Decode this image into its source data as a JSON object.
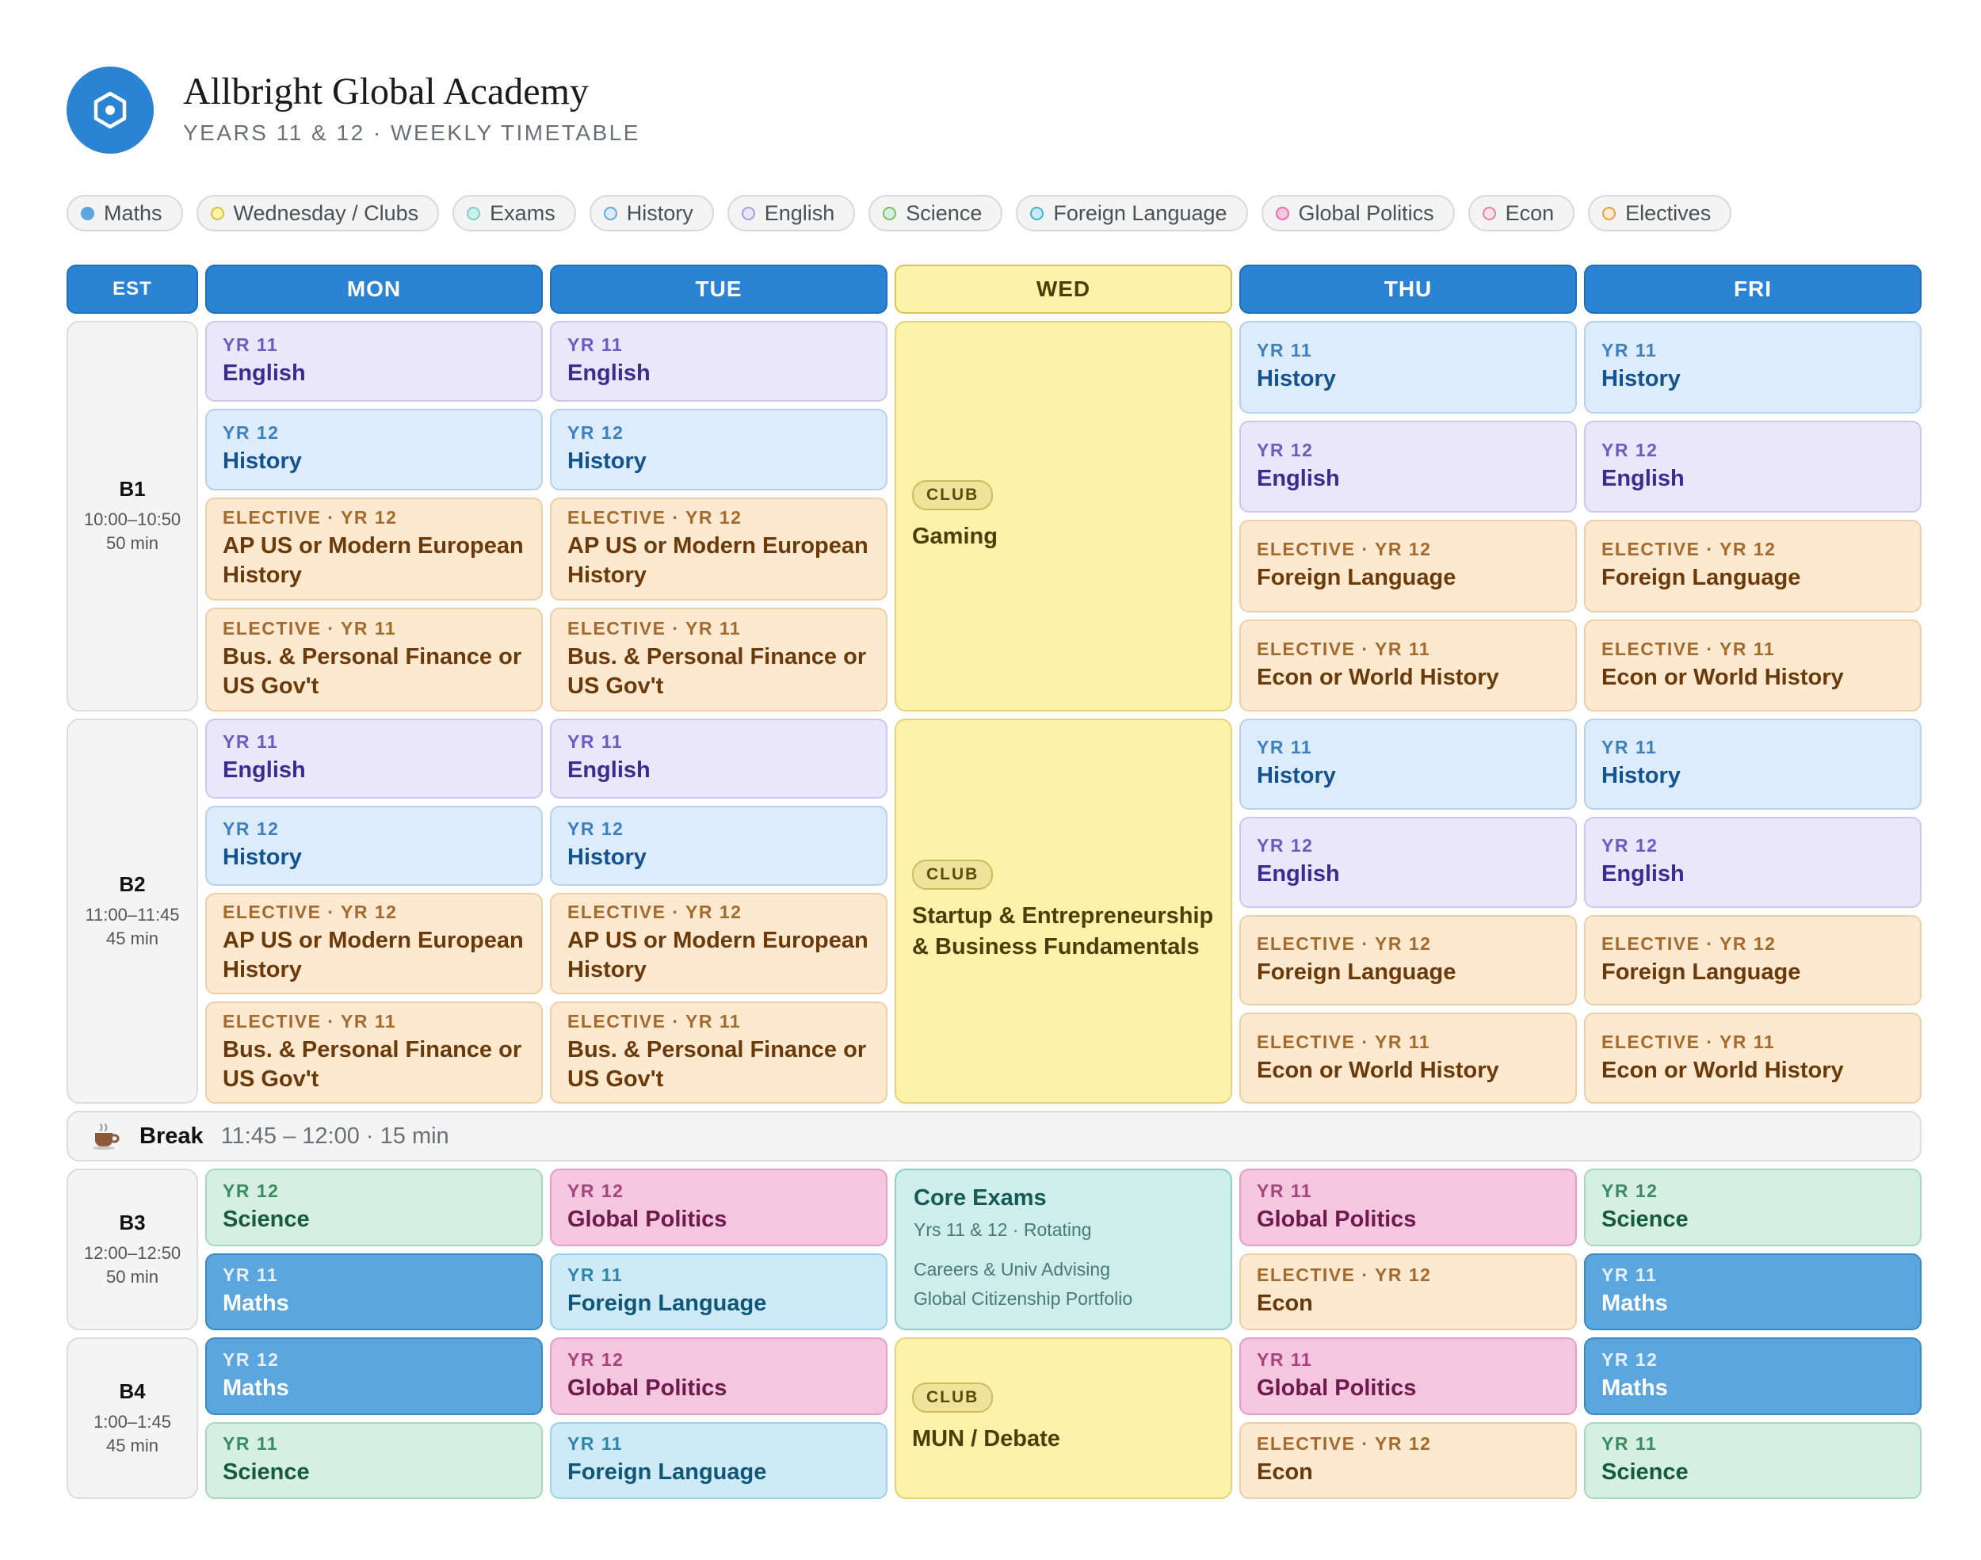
{
  "header": {
    "title": "Allbright Global Academy",
    "subtitle": "YEARS 11 & 12 · WEEKLY TIMETABLE",
    "logo_icon": "hexagon-logo-icon",
    "accent": "#2b84d3"
  },
  "legend": [
    {
      "label": "Maths",
      "color": "#5ba6de",
      "filled": true
    },
    {
      "label": "Wednesday / Clubs",
      "color": "#d9c13a",
      "filled": false
    },
    {
      "label": "Exams",
      "color": "#7ccfc4",
      "filled": false
    },
    {
      "label": "History",
      "color": "#6aa6dc",
      "filled": false
    },
    {
      "label": "English",
      "color": "#a99be2",
      "filled": false
    },
    {
      "label": "Science",
      "color": "#7dbf5a",
      "filled": false
    },
    {
      "label": "Foreign Language",
      "color": "#3fb6c6",
      "filled": false
    },
    {
      "label": "Global Politics",
      "color": "#e56ea8",
      "filled": false
    },
    {
      "label": "Econ",
      "color": "#e3849e",
      "filled": false
    },
    {
      "label": "Electives",
      "color": "#e6a047",
      "filled": false
    }
  ],
  "columns": {
    "est": "EST",
    "mon": "MON",
    "tue": "TUE",
    "wed": "WED",
    "thu": "THU",
    "fri": "FRI"
  },
  "blocks": {
    "b1": {
      "name": "B1",
      "time": "10:00–10:50",
      "duration": "50 min"
    },
    "b2": {
      "name": "B2",
      "time": "11:00–11:45",
      "duration": "45 min"
    },
    "b3": {
      "name": "B3",
      "time": "12:00–12:50",
      "duration": "50 min"
    },
    "b4": {
      "name": "B4",
      "time": "1:00–1:45",
      "duration": "45 min"
    }
  },
  "labels": {
    "yr11": "YR 11",
    "yr12": "YR 12",
    "el11": "ELECTIVE · YR 11",
    "el12": "ELECTIVE · YR 12",
    "club": "CLUB"
  },
  "subjects": {
    "english": "English",
    "history": "History",
    "ap_history": "AP US or Modern European History",
    "finance": "Bus. & Personal Finance or US Gov't",
    "foreign": "Foreign Language",
    "econ_world": "Econ or World History",
    "science": "Science",
    "maths": "Maths",
    "global_politics": "Global Politics",
    "econ": "Econ"
  },
  "clubs": {
    "b1": "Gaming",
    "b2": "Startup & Entrepreneurship & Business Fundamentals",
    "b4": "MUN / Debate"
  },
  "exam": {
    "title": "Core Exams",
    "subtitle": "Yrs 11 & 12 · Rotating",
    "line1": "Careers & Univ Advising",
    "line2": "Global Citizenship Portfolio"
  },
  "break": {
    "icon": "coffee-cup-icon",
    "label": "Break",
    "time": "11:45 – 12:00 · 15 min"
  }
}
